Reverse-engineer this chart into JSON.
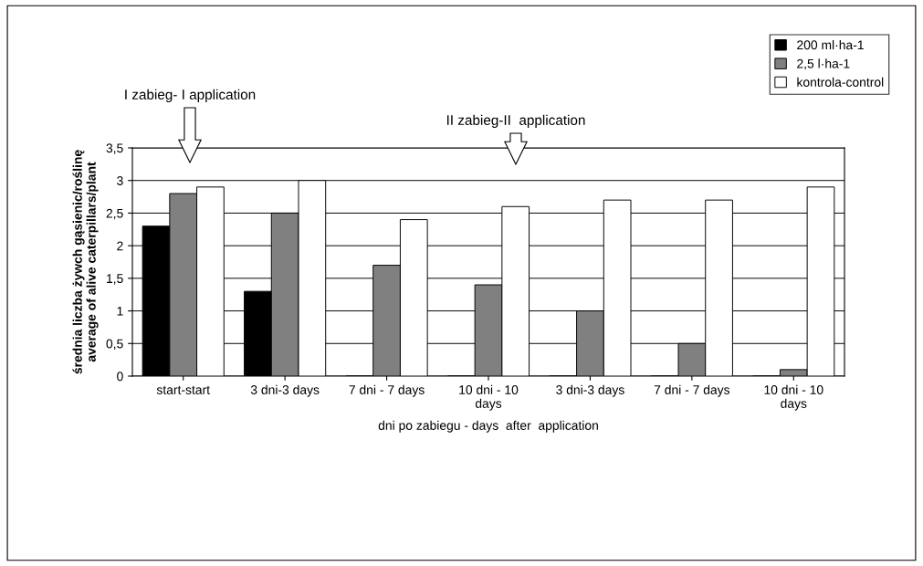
{
  "chart_data": {
    "type": "bar",
    "xlabel": "dni po zabiegu - days  after  application",
    "ylabel": "średnia liczba żywch gąsienic/roślinę\naverage of alive caterpillars/plant",
    "categories": [
      "start-start",
      "3 dni-3 days",
      "7 dni - 7 days",
      "10 dni - 10\ndays",
      "3 dni-3 days",
      "7 dni - 7 days",
      "10 dni - 10\ndays"
    ],
    "series": [
      {
        "name": "200 ml·ha-1",
        "color": "#000000",
        "values": [
          2.3,
          1.3,
          0,
          0,
          0,
          0,
          0
        ]
      },
      {
        "name": "2,5 l·ha-1",
        "color": "#808080",
        "values": [
          2.8,
          2.5,
          1.7,
          1.4,
          1.0,
          0.5,
          0.1
        ]
      },
      {
        "name": "kontrola-control",
        "color": "#ffffff",
        "values": [
          2.9,
          3.0,
          2.4,
          2.6,
          2.7,
          2.7,
          2.9
        ]
      }
    ],
    "ylim": [
      0,
      3.5
    ],
    "yticks": [
      0,
      {
        "value": 0.5,
        "label": "0,5"
      },
      1,
      {
        "value": 1.5,
        "label": "1,5"
      },
      2,
      {
        "value": 2.5,
        "label": "2,5"
      },
      3,
      {
        "value": 3.5,
        "label": "3,5"
      }
    ],
    "grid": "y",
    "legend": "top right",
    "annotations": [
      "I zabieg- I application",
      "II zabieg-II  application"
    ]
  }
}
